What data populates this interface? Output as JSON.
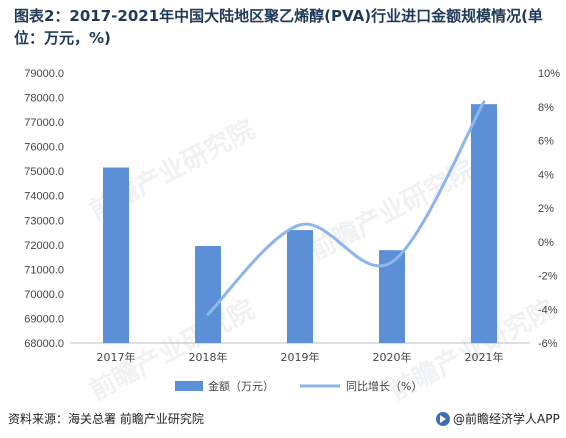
{
  "title": "图表2：2017-2021年中国大陆地区聚乙烯醇(PVA)行业进口金额规模情况(单位：万元，%)",
  "source": "资料来源：海关总署 前瞻产业研究院",
  "brand": "@前瞻经济学人APP",
  "watermark": "前瞻产业研究院",
  "colors": {
    "bar": "#5b8fd6",
    "line": "#8fb6ea",
    "grid": "#d9d9d9",
    "title": "#1f3b57"
  },
  "chart_data": {
    "type": "bar",
    "categories": [
      "2017年",
      "2018年",
      "2019年",
      "2020年",
      "2021年"
    ],
    "series": [
      {
        "name": "金额（万元）",
        "type": "bar",
        "axis": "left",
        "values": [
          75150,
          71950,
          72600,
          71780,
          77730
        ]
      },
      {
        "name": "同比增长（%）",
        "type": "line",
        "axis": "right",
        "smooth": true,
        "values": [
          null,
          -4.3,
          1.0,
          -1.2,
          8.3
        ]
      }
    ],
    "y_left": {
      "min": 68000,
      "max": 79000,
      "step": 1000,
      "ticks": [
        "79000.0",
        "78000.0",
        "77000.0",
        "76000.0",
        "75000.0",
        "74000.0",
        "73000.0",
        "72000.0",
        "71000.0",
        "70000.0",
        "69000.0",
        "68000.0"
      ]
    },
    "y_right": {
      "min": -6,
      "max": 10,
      "step": 2,
      "ticks": [
        "10%",
        "8%",
        "6%",
        "4%",
        "2%",
        "0%",
        "-2%",
        "-4%",
        "-6%"
      ]
    },
    "legend": {
      "position": "bottom",
      "items": [
        {
          "label": "金额（万元）",
          "kind": "bar"
        },
        {
          "label": "同比增长（%）",
          "kind": "line"
        }
      ]
    },
    "grid": false
  }
}
